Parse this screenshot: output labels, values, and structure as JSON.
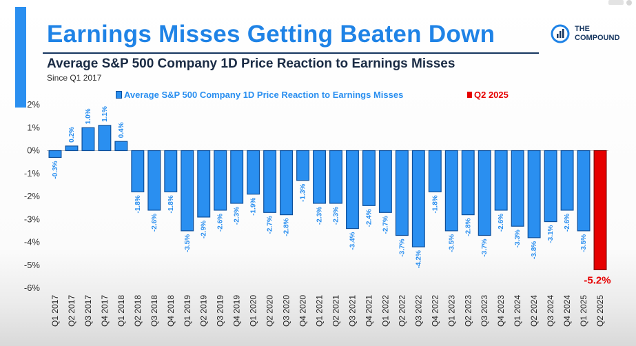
{
  "header": {
    "title": "Earnings Misses Getting Beaten Down",
    "subtitle": "Average S&P 500 Company 1D Price Reaction to Earnings Misses",
    "since": "Since Q1 2017"
  },
  "logo": {
    "line1": "THE",
    "line2": "COMPOUND"
  },
  "legend": {
    "series_label": "Average S&P 500 Company 1D Price Reaction to Earnings Misses",
    "highlight_label": "Q2 2025"
  },
  "colors": {
    "title": "#1f83e6",
    "bar": "#2a8ff0",
    "bar_border": "#0e4f9a",
    "highlight": "#e60000",
    "label": "#2a8ff0",
    "rule": "#15355f"
  },
  "chart_data": {
    "type": "bar",
    "title": "Average S&P 500 Company 1D Price Reaction to Earnings Misses",
    "xlabel": "",
    "ylabel": "",
    "ylim": [
      -6,
      2
    ],
    "yticks": [
      2,
      1,
      0,
      -1,
      -2,
      -3,
      -4,
      -5,
      -6
    ],
    "ytick_labels": [
      "2%",
      "1%",
      "0%",
      "-1%",
      "-2%",
      "-3%",
      "-4%",
      "-5%",
      "-6%"
    ],
    "categories": [
      "Q1 2017",
      "Q2 2017",
      "Q3 2017",
      "Q4 2017",
      "Q1 2018",
      "Q2 2018",
      "Q3 2018",
      "Q4 2018",
      "Q1 2019",
      "Q2 2019",
      "Q3 2019",
      "Q4 2019",
      "Q1 2020",
      "Q2 2020",
      "Q3 2020",
      "Q4 2020",
      "Q1 2021",
      "Q2 2021",
      "Q3 2021",
      "Q4 2021",
      "Q1 2022",
      "Q2 2022",
      "Q3 2022",
      "Q4 2022",
      "Q1 2023",
      "Q2 2023",
      "Q3 2023",
      "Q4 2023",
      "Q1 2024",
      "Q2 2024",
      "Q3 2024",
      "Q4 2024",
      "Q1 2025",
      "Q2 2025"
    ],
    "values": [
      -0.3,
      0.2,
      1.0,
      1.1,
      0.4,
      -1.8,
      -2.6,
      -1.8,
      -3.5,
      -2.9,
      -2.6,
      -2.3,
      -1.9,
      -2.7,
      -2.8,
      -1.3,
      -2.3,
      -2.3,
      -3.4,
      -2.4,
      -2.7,
      -3.7,
      -4.2,
      -1.8,
      -3.5,
      -2.8,
      -3.7,
      -2.6,
      -3.3,
      -3.8,
      -3.1,
      -2.6,
      -3.5,
      -5.2
    ],
    "labels": [
      "-0.3%",
      "0.2%",
      "1.0%",
      "1.1%",
      "0.4%",
      "-1.8%",
      "-2.6%",
      "-1.8%",
      "-3.5%",
      "-2.9%",
      "-2.6%",
      "-2.3%",
      "-1.9%",
      "-2.7%",
      "-2.8%",
      "-1.3%",
      "-2.3%",
      "-2.3%",
      "-3.4%",
      "-2.4%",
      "-2.7%",
      "-3.7%",
      "-4.2%",
      "-1.8%",
      "-3.5%",
      "-2.8%",
      "-3.7%",
      "-2.6%",
      "-3.3%",
      "-3.8%",
      "-3.1%",
      "-2.6%",
      "-3.5%",
      "-5.2%"
    ],
    "highlight_index": 33,
    "legend_position": "top"
  }
}
